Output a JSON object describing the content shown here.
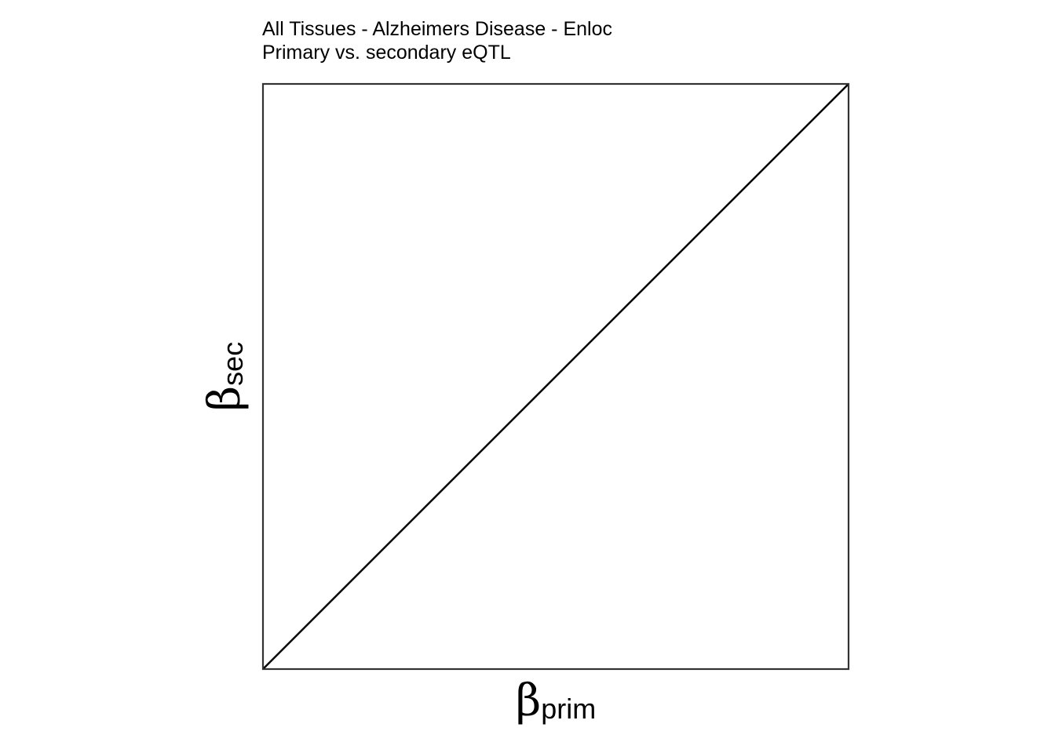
{
  "chart_data": {
    "type": "line",
    "title": "All Tissues - Alzheimers Disease - Enloc",
    "subtitle": "Primary vs. secondary eQTL",
    "xlabel": {
      "symbol": "β",
      "subscript": "prim"
    },
    "ylabel": {
      "symbol": "β",
      "subscript": "sec"
    },
    "xlim": [
      0,
      1
    ],
    "ylim": [
      0,
      1
    ],
    "grid": false,
    "series": [
      {
        "name": "identity line",
        "x": [
          0,
          1
        ],
        "y": [
          0,
          1
        ]
      }
    ],
    "colors": {
      "line": "#000000",
      "frame": "#333333",
      "background": "#ffffff"
    }
  }
}
